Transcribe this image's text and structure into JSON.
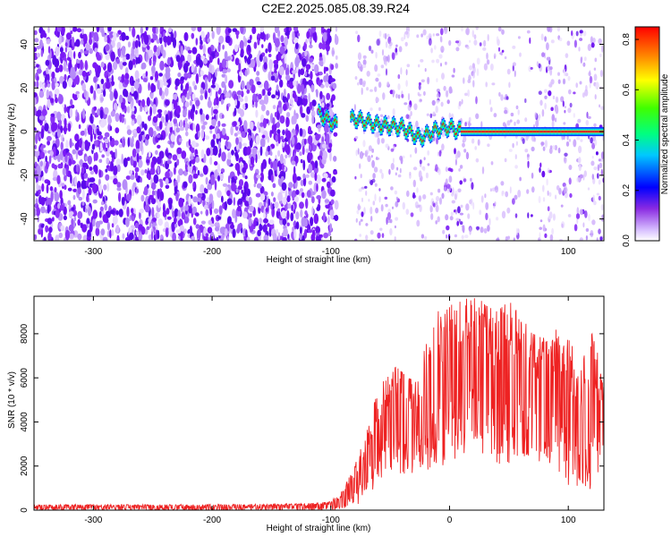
{
  "title": "C2E2.2025.085.08.39.R24",
  "chart_data": [
    {
      "type": "heatmap",
      "xlabel": "Height of straight line (km)",
      "ylabel": "Frequency (Hz)",
      "xlim": [
        -350,
        130
      ],
      "ylim": [
        -50,
        48
      ],
      "x_ticks": [
        "-300",
        "-200",
        "-100",
        "0",
        "100"
      ],
      "y_ticks": [
        "-40",
        "-20",
        "0",
        "20",
        "40"
      ],
      "colorbar": {
        "label": "Normalized spectral amplitude",
        "range": [
          0.0,
          0.85
        ],
        "ticks": [
          "0.0",
          "0.2",
          "0.4",
          "0.6",
          "0.8"
        ]
      },
      "features": {
        "noise_region_x": [
          -350,
          -110
        ],
        "gap_x": [
          -100,
          -80
        ],
        "signal_start_x": -110,
        "signal_track": {
          "x": [
            -110,
            -95,
            -80,
            -60,
            -40,
            -25,
            -10,
            0,
            10,
            130
          ],
          "y": [
            8,
            3,
            6,
            3,
            2,
            -3,
            1,
            2,
            0,
            0
          ]
        },
        "signal_amplitude": "0.8"
      },
      "colors": {
        "noise": "#6a10f0",
        "signal_core": "#e01020",
        "signal_edge": "#00d8ff"
      }
    },
    {
      "type": "line",
      "xlabel": "Height of straight line (km)",
      "ylabel": "SNR (10 * v/v)",
      "xlim": [
        -350,
        130
      ],
      "ylim": [
        0,
        9700
      ],
      "x_ticks": [
        "-300",
        "-200",
        "-100",
        "0",
        "100"
      ],
      "y_ticks": [
        "0",
        "2000",
        "4000",
        "6000",
        "8000"
      ],
      "color": "#ee2222",
      "envelope": {
        "x": [
          -350,
          -200,
          -120,
          -100,
          -90,
          -80,
          -70,
          -60,
          -55,
          -45,
          -35,
          -25,
          -20,
          -10,
          0,
          10,
          20,
          25,
          30,
          40,
          50,
          60,
          70,
          80,
          90,
          100,
          110,
          120,
          128
        ],
        "top": [
          250,
          250,
          300,
          400,
          900,
          2000,
          3500,
          5500,
          6000,
          6500,
          6000,
          5800,
          7800,
          9000,
          9300,
          9500,
          9700,
          9600,
          9300,
          9000,
          9500,
          8800,
          8000,
          7800,
          8200,
          7900,
          6500,
          8000,
          6500
        ],
        "bottom": [
          0,
          0,
          0,
          0,
          0,
          100,
          600,
          1200,
          1500,
          1700,
          1600,
          1800,
          1800,
          1800,
          1900,
          2500,
          2800,
          2900,
          2100,
          1800,
          1900,
          2500,
          2300,
          2100,
          1900,
          800,
          1100,
          900,
          1500
        ]
      }
    }
  ]
}
